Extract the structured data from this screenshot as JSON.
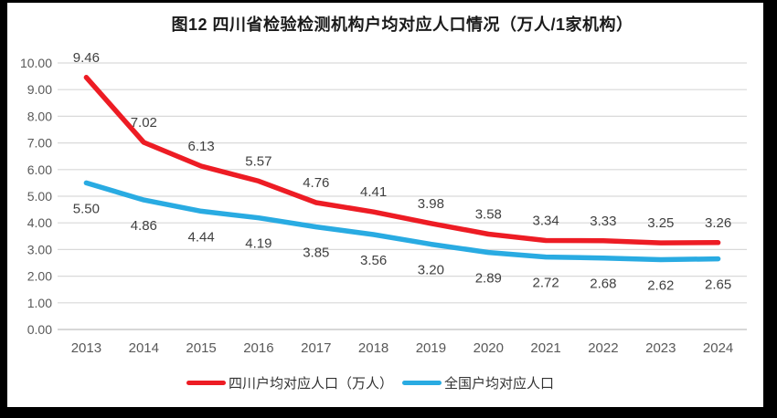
{
  "chart_data": {
    "type": "line",
    "title": "图12  四川省检验检测机构户均对应人口情况（万人/1家机构）",
    "categories": [
      "2013",
      "2014",
      "2015",
      "2016",
      "2017",
      "2018",
      "2019",
      "2020",
      "2021",
      "2022",
      "2023",
      "2024"
    ],
    "series": [
      {
        "name": "四川户均对应人口（万人）",
        "color": "#ED1C24",
        "values": [
          9.46,
          7.02,
          6.13,
          5.57,
          4.76,
          4.41,
          3.98,
          3.58,
          3.34,
          3.33,
          3.25,
          3.26
        ],
        "data_labels": [
          "9.46",
          "7.02",
          "6.13",
          "5.57",
          "4.76",
          "4.41",
          "3.98",
          "3.58",
          "3.34",
          "3.33",
          "3.25",
          "3.26"
        ],
        "label_position": "above"
      },
      {
        "name": "全国户均对应人口",
        "color": "#29ABE2",
        "values": [
          5.5,
          4.86,
          4.44,
          4.19,
          3.85,
          3.56,
          3.2,
          2.89,
          2.72,
          2.68,
          2.62,
          2.65
        ],
        "data_labels": [
          "5.50",
          "4.86",
          "4.44",
          "4.19",
          "3.85",
          "3.56",
          "3.20",
          "2.89",
          "2.72",
          "2.68",
          "2.62",
          "2.65"
        ],
        "label_position": "below"
      }
    ],
    "ylim": [
      0,
      10
    ],
    "ytick_step": 1,
    "yticks": [
      "0.00",
      "1.00",
      "2.00",
      "3.00",
      "4.00",
      "5.00",
      "6.00",
      "7.00",
      "8.00",
      "9.00",
      "10.00"
    ],
    "grid": true,
    "legend_position": "bottom"
  },
  "colors": {
    "background": "#FFFFFF",
    "frame": "#000000",
    "grid": "#D9D9D9",
    "axis_line": "#BFBFBF",
    "tick_label": "#595959",
    "data_label": "#404040",
    "series_sichuan": "#ED1C24",
    "series_national": "#29ABE2"
  }
}
